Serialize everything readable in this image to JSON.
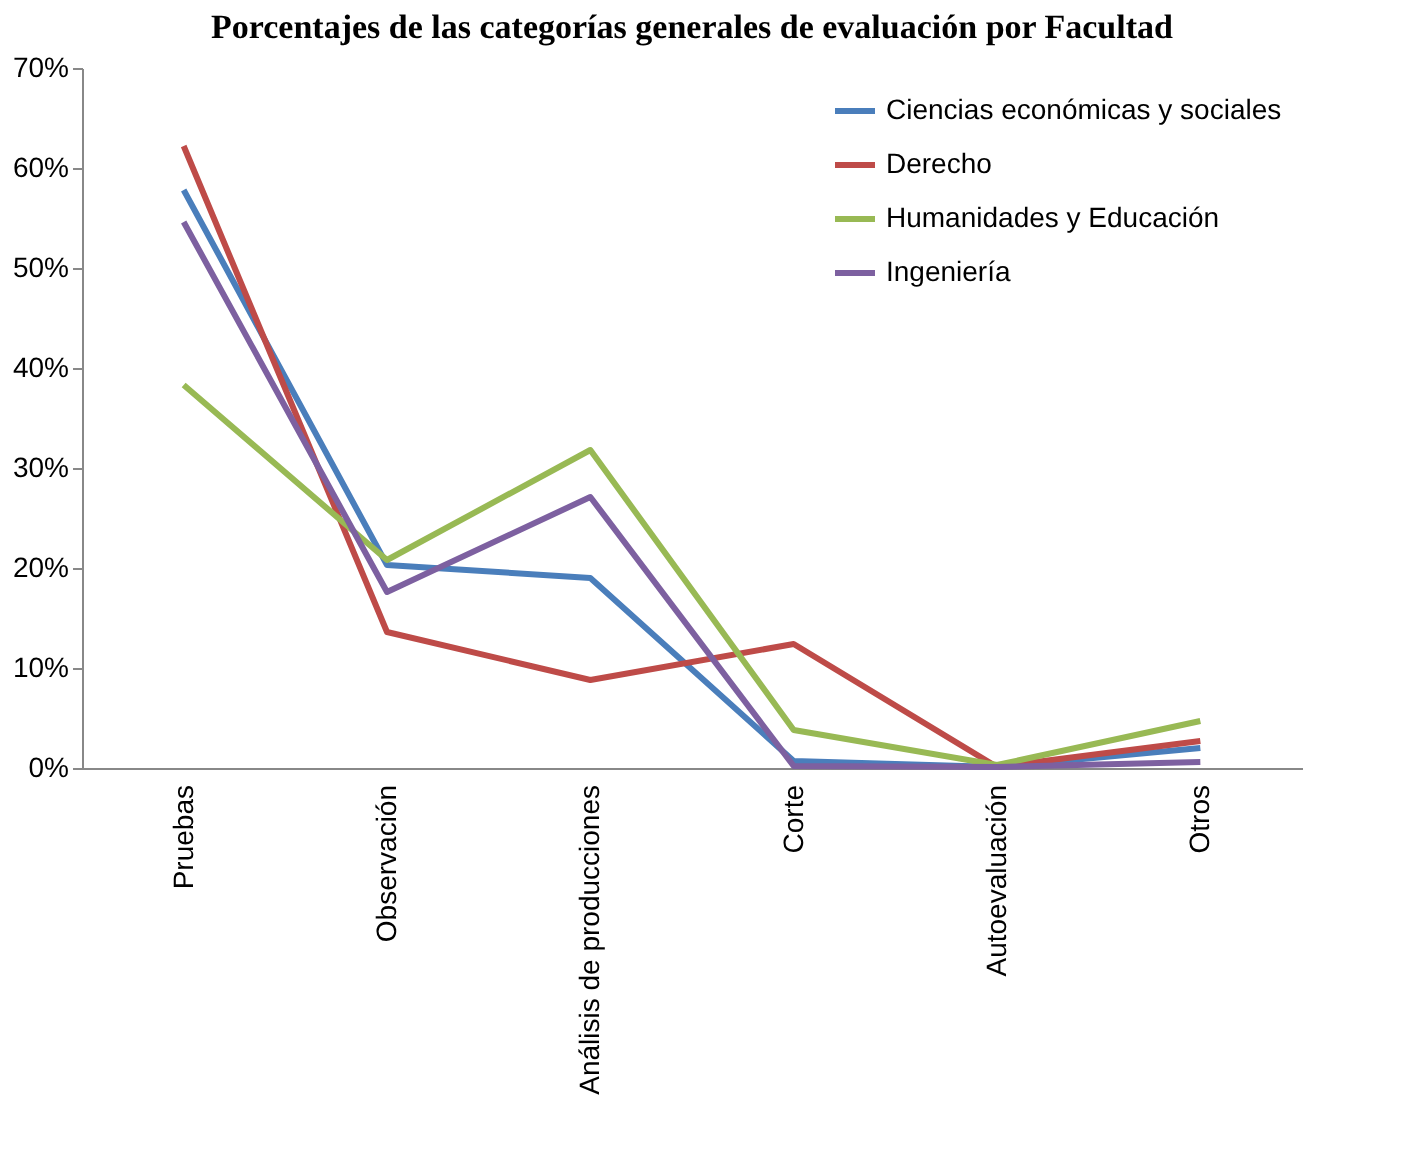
{
  "chart_data": {
    "type": "line",
    "title": "Porcentajes de las categorías generales de evaluación por Facultad",
    "categories": [
      "Pruebas",
      "Observación",
      "Análisis de producciones",
      "Corte",
      "Autoevaluación",
      "Otros"
    ],
    "series": [
      {
        "name": "Ciencias económicas y sociales",
        "color": "#4a7ebb",
        "values": [
          57.8,
          20.3,
          19.0,
          0.7,
          0.1,
          2.0
        ]
      },
      {
        "name": "Derecho",
        "color": "#be4b48",
        "values": [
          62.2,
          13.6,
          8.8,
          12.4,
          0.1,
          2.7
        ]
      },
      {
        "name": "Humanidades y Educación",
        "color": "#98b954",
        "values": [
          38.3,
          20.8,
          31.8,
          3.8,
          0.3,
          4.7
        ]
      },
      {
        "name": "Ingeniería",
        "color": "#7d60a0",
        "values": [
          54.6,
          17.6,
          27.1,
          0.2,
          0.1,
          0.6
        ]
      }
    ],
    "ylim": [
      0,
      70
    ],
    "yticks": [
      {
        "value": 0,
        "label": "0%"
      },
      {
        "value": 10,
        "label": "10%"
      },
      {
        "value": 20,
        "label": "20%"
      },
      {
        "value": 30,
        "label": "30%"
      },
      {
        "value": 40,
        "label": "40%"
      },
      {
        "value": 50,
        "label": "50%"
      },
      {
        "value": 60,
        "label": "60%"
      },
      {
        "value": 70,
        "label": "70%"
      }
    ],
    "grid": false,
    "legend": "top right",
    "marker": "none",
    "line_style": "solid"
  }
}
